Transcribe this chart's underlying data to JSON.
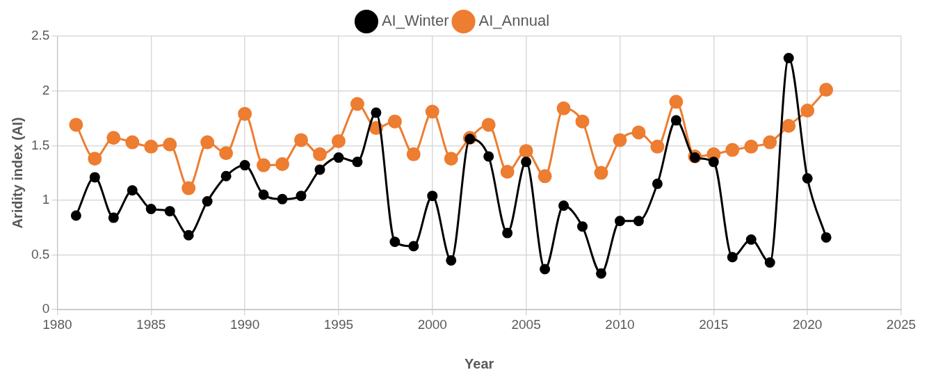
{
  "chart_data": {
    "type": "line",
    "xlabel": "Year",
    "ylabel": "Aridity index (AI)",
    "x": [
      1981,
      1982,
      1983,
      1984,
      1985,
      1986,
      1987,
      1988,
      1989,
      1990,
      1991,
      1992,
      1993,
      1994,
      1995,
      1996,
      1997,
      1998,
      1999,
      2000,
      2001,
      2002,
      2003,
      2004,
      2005,
      2006,
      2007,
      2008,
      2009,
      2010,
      2011,
      2012,
      2013,
      2014,
      2015,
      2016,
      2017,
      2018,
      2019,
      2020,
      2021
    ],
    "series": [
      {
        "name": "AI_Winter",
        "color": "#000000",
        "values": [
          0.86,
          1.21,
          0.84,
          1.09,
          0.92,
          0.9,
          0.68,
          0.99,
          1.22,
          1.32,
          1.05,
          1.01,
          1.04,
          1.28,
          1.39,
          1.35,
          1.8,
          0.62,
          0.58,
          1.04,
          0.45,
          1.56,
          1.4,
          0.7,
          1.35,
          0.37,
          0.95,
          0.76,
          0.33,
          0.81,
          0.81,
          1.15,
          1.73,
          1.39,
          1.35,
          0.48,
          0.64,
          0.43,
          2.3,
          1.2,
          0.66
        ]
      },
      {
        "name": "AI_Annual",
        "color": "#ed7d31",
        "values": [
          1.69,
          1.38,
          1.57,
          1.53,
          1.49,
          1.51,
          1.11,
          1.53,
          1.43,
          1.79,
          1.32,
          1.33,
          1.55,
          1.42,
          1.54,
          1.88,
          1.66,
          1.72,
          1.42,
          1.81,
          1.38,
          1.57,
          1.69,
          1.26,
          1.45,
          1.22,
          1.84,
          1.72,
          1.25,
          1.55,
          1.62,
          1.49,
          1.9,
          1.4,
          1.42,
          1.46,
          1.49,
          1.53,
          1.68,
          1.82,
          2.01
        ]
      }
    ],
    "xlim": [
      1980,
      2025
    ],
    "xticks": [
      1980,
      1985,
      1990,
      1995,
      2000,
      2005,
      2010,
      2015,
      2020,
      2025
    ],
    "ylim": [
      0,
      2.5
    ],
    "yticks": [
      0,
      0.5,
      1,
      1.5,
      2,
      2.5
    ],
    "grid": true,
    "legend": "top",
    "marker": "circle",
    "line_style": "solid"
  }
}
